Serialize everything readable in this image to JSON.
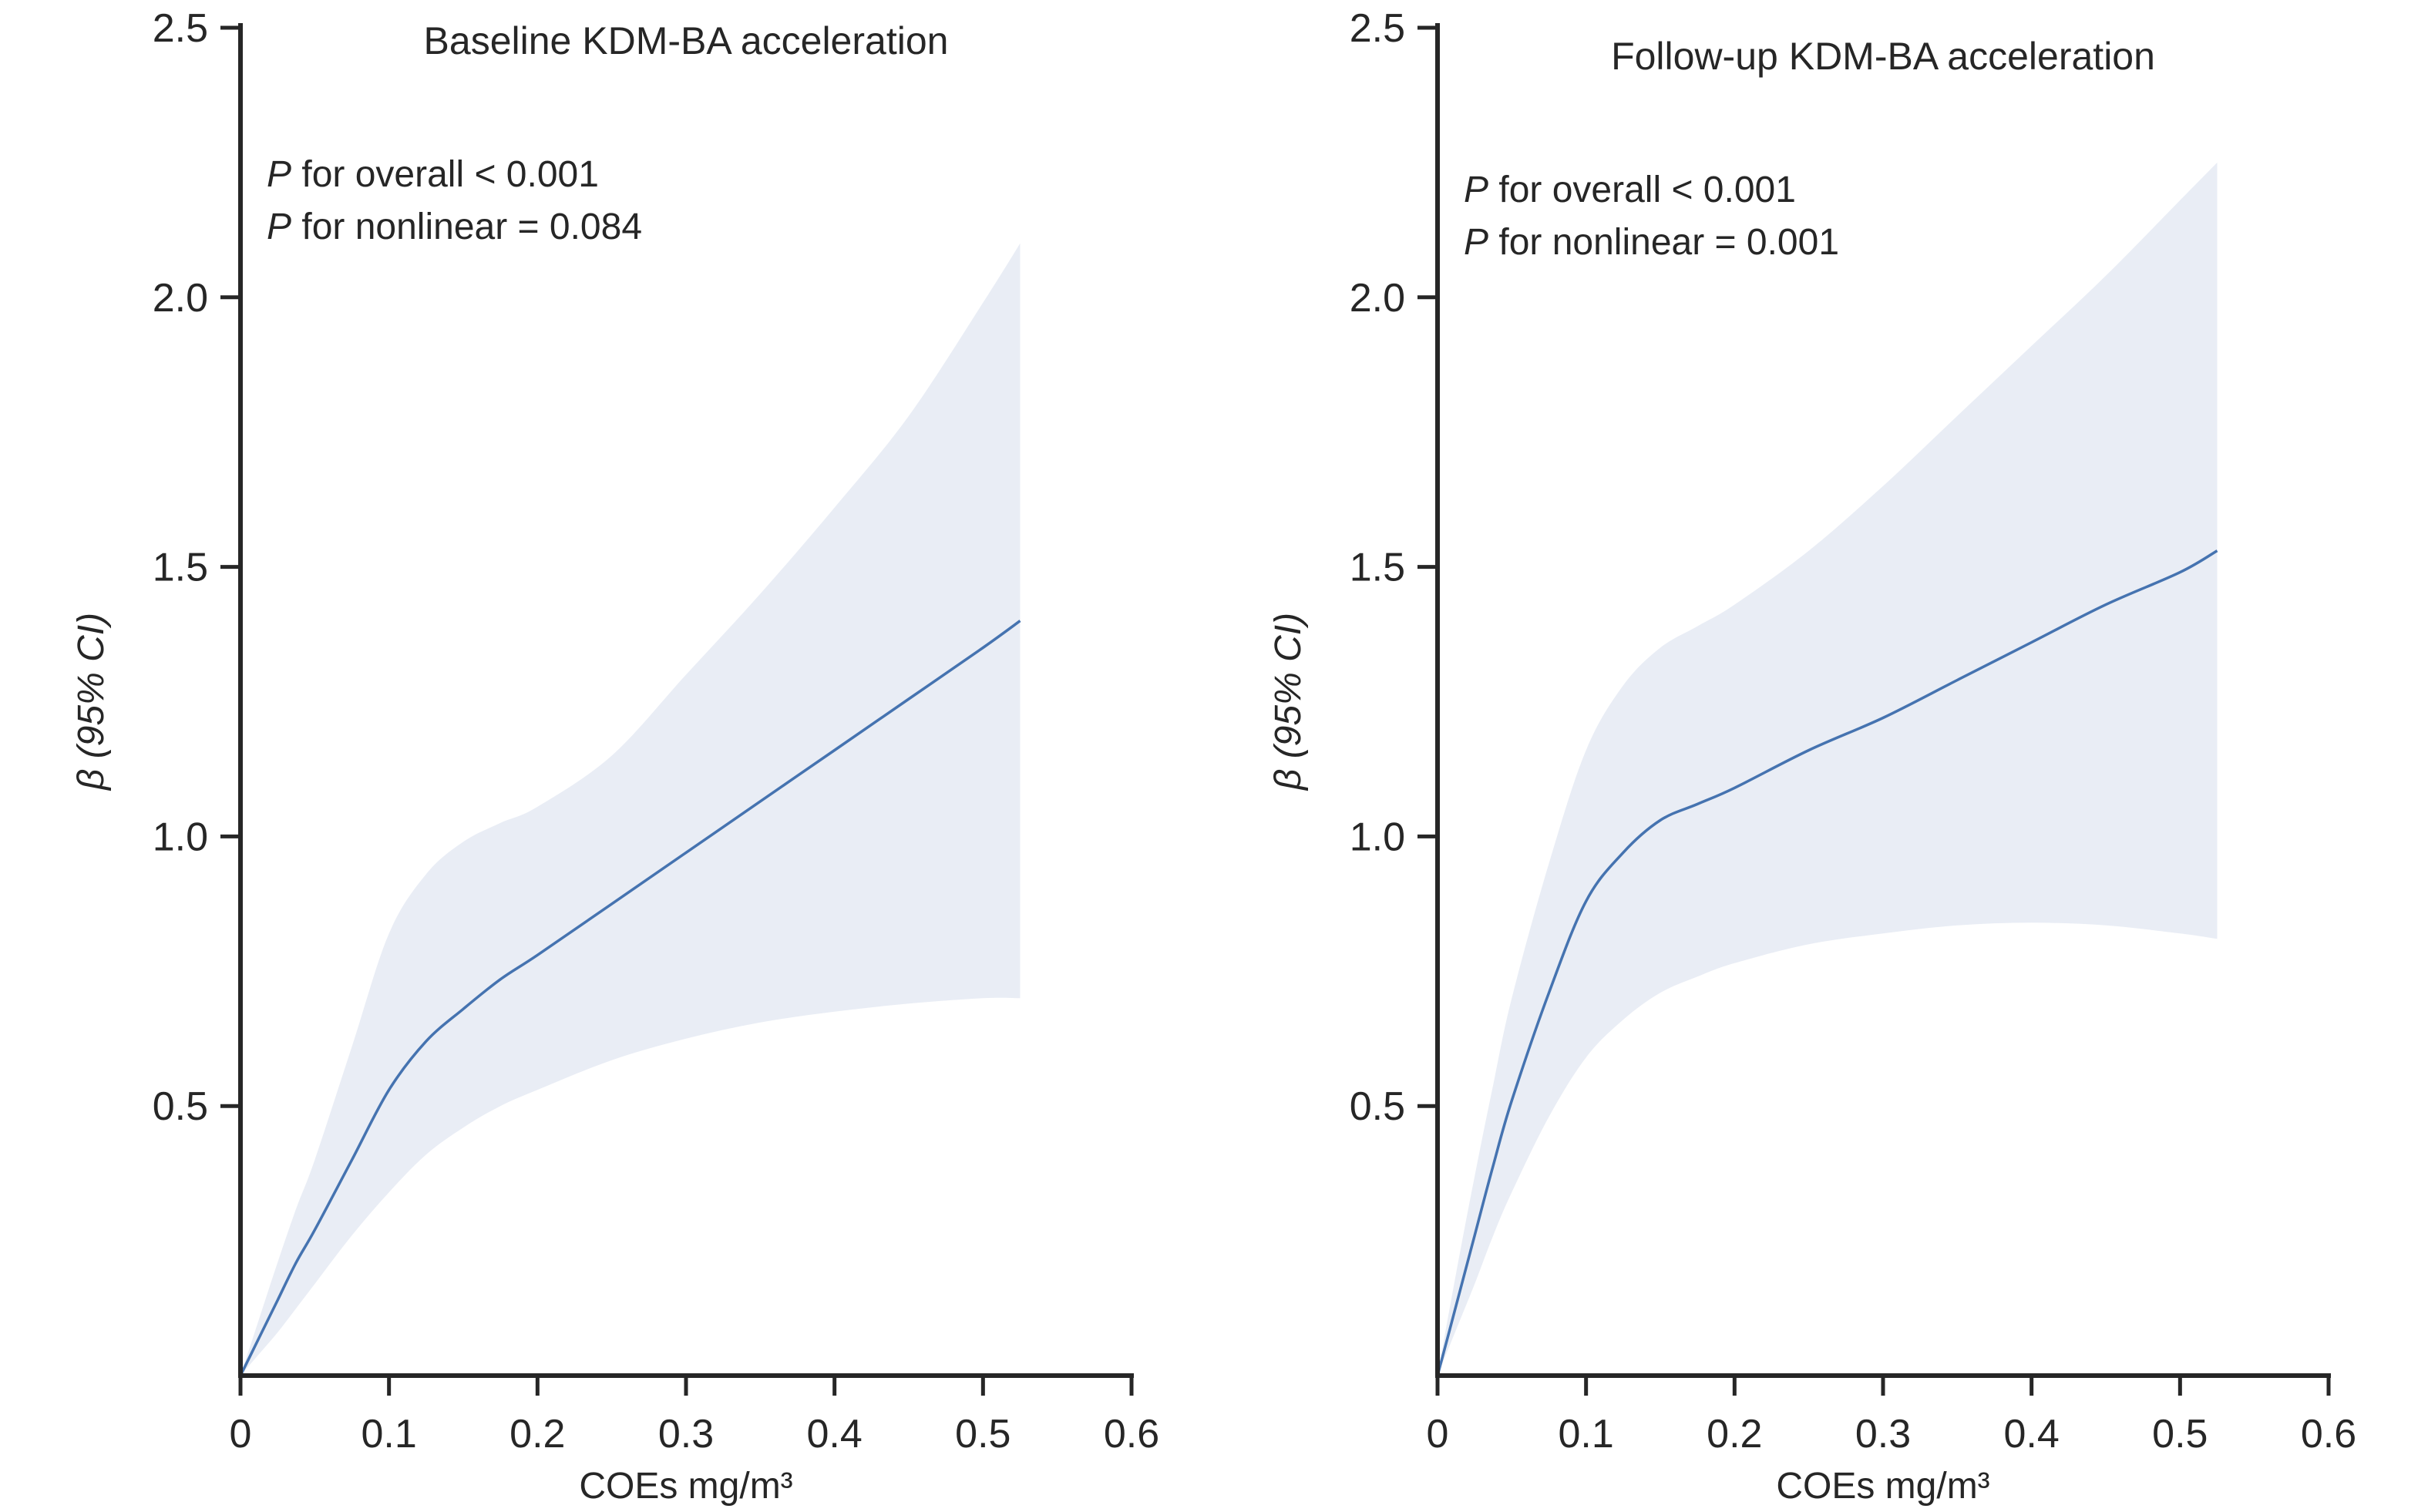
{
  "figure": {
    "background": "#ffffff",
    "text_color": "#262626",
    "axis_color": "#262626"
  },
  "chart_data": [
    {
      "type": "line",
      "title": "Baseline KDM-BA acceleration",
      "annotations": [
        "P for overall < 0.001",
        "P for nonlinear = 0.084"
      ],
      "xlabel": "COEs mg/m³",
      "ylabel": "β (95% CI)",
      "xlim": [
        0,
        0.6
      ],
      "ylim": [
        0,
        2.5
      ],
      "grid": false,
      "legend": "none",
      "xticks": {
        "values": [
          0,
          0.1,
          0.2,
          0.3,
          0.4,
          0.5,
          0.6
        ],
        "labels": [
          "0",
          "0.1",
          "0.2",
          "0.3",
          "0.4",
          "0.5",
          "0.6"
        ]
      },
      "yticks": {
        "values": [
          0.5,
          1.0,
          1.5,
          2.0,
          2.5
        ],
        "labels": [
          "0.5",
          "1.0",
          "1.5",
          "2.0",
          "2.5"
        ]
      },
      "x": [
        0,
        0.0125,
        0.025,
        0.0375,
        0.05,
        0.075,
        0.1,
        0.125,
        0.15,
        0.175,
        0.2,
        0.25,
        0.3,
        0.35,
        0.4,
        0.45,
        0.5,
        0.525
      ],
      "series": [
        {
          "name": "beta",
          "values": [
            0,
            0.07,
            0.14,
            0.21,
            0.27,
            0.4,
            0.53,
            0.62,
            0.68,
            0.735,
            0.78,
            0.875,
            0.97,
            1.065,
            1.16,
            1.255,
            1.35,
            1.4
          ]
        },
        {
          "name": "ci_upper",
          "values": [
            0,
            0.105,
            0.21,
            0.31,
            0.4,
            0.61,
            0.82,
            0.93,
            0.99,
            1.025,
            1.055,
            1.15,
            1.3,
            1.45,
            1.61,
            1.78,
            1.99,
            2.1
          ]
        },
        {
          "name": "ci_lower",
          "values": [
            0,
            0.04,
            0.08,
            0.125,
            0.17,
            0.26,
            0.34,
            0.41,
            0.46,
            0.5,
            0.53,
            0.585,
            0.625,
            0.655,
            0.675,
            0.69,
            0.7,
            0.7
          ]
        }
      ],
      "colors": {
        "line": "#4573b0",
        "band": "#e9edf5"
      }
    },
    {
      "type": "line",
      "title": "Follow-up KDM-BA acceleration",
      "annotations": [
        "P for overall < 0.001",
        "P for nonlinear = 0.001"
      ],
      "xlabel": "COEs mg/m³",
      "ylabel": "β (95% CI)",
      "xlim": [
        0,
        0.6
      ],
      "ylim": [
        0,
        2.5
      ],
      "grid": false,
      "legend": "none",
      "xticks": {
        "values": [
          0,
          0.1,
          0.2,
          0.3,
          0.4,
          0.5,
          0.6
        ],
        "labels": [
          "0",
          "0.1",
          "0.2",
          "0.3",
          "0.4",
          "0.5",
          "0.6"
        ]
      },
      "yticks": {
        "values": [
          0.5,
          1.0,
          1.5,
          2.0,
          2.5
        ],
        "labels": [
          "0.5",
          "1.0",
          "1.5",
          "2.0",
          "2.5"
        ]
      },
      "x": [
        0,
        0.0125,
        0.025,
        0.0375,
        0.05,
        0.075,
        0.1,
        0.125,
        0.15,
        0.175,
        0.2,
        0.25,
        0.3,
        0.35,
        0.4,
        0.45,
        0.5,
        0.525
      ],
      "series": [
        {
          "name": "beta",
          "values": [
            0,
            0.13,
            0.26,
            0.39,
            0.51,
            0.71,
            0.88,
            0.97,
            1.03,
            1.06,
            1.09,
            1.16,
            1.22,
            1.29,
            1.36,
            1.43,
            1.49,
            1.53
          ]
        },
        {
          "name": "ci_upper",
          "values": [
            0,
            0.19,
            0.37,
            0.54,
            0.7,
            0.95,
            1.16,
            1.28,
            1.35,
            1.39,
            1.43,
            1.53,
            1.65,
            1.78,
            1.91,
            2.04,
            2.18,
            2.25
          ]
        },
        {
          "name": "ci_lower",
          "values": [
            0,
            0.085,
            0.17,
            0.26,
            0.34,
            0.48,
            0.59,
            0.66,
            0.71,
            0.74,
            0.765,
            0.8,
            0.82,
            0.835,
            0.84,
            0.835,
            0.82,
            0.81
          ]
        }
      ],
      "colors": {
        "line": "#4573b0",
        "band": "#e9edf5"
      }
    }
  ]
}
